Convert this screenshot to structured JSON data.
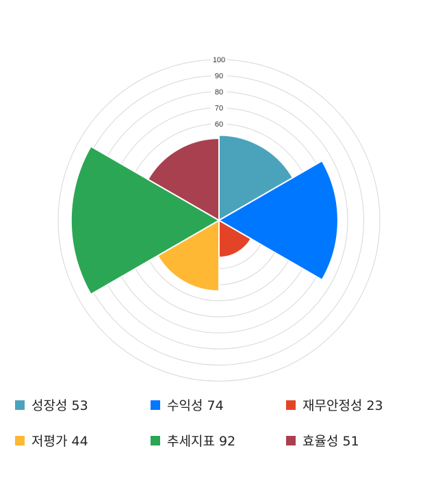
{
  "chart_data": {
    "type": "polar-area",
    "categories": [
      "성장성",
      "수익성",
      "재무안정성",
      "저평가",
      "추세지표",
      "효율성"
    ],
    "values": [
      53,
      74,
      23,
      44,
      92,
      51
    ],
    "colors": [
      "#4aa3bb",
      "#0077ff",
      "#e34427",
      "#ffb833",
      "#2ba655",
      "#a8404f"
    ],
    "rlim": [
      0,
      100
    ],
    "tick_labels": [
      "60",
      "70",
      "80",
      "90",
      "100"
    ],
    "grid": true,
    "legend_position": "bottom",
    "legend": [
      "성장성 53",
      "수익성 74",
      "재무안정성 23",
      "저평가 44",
      "추세지표 92",
      "효율성 51"
    ]
  }
}
